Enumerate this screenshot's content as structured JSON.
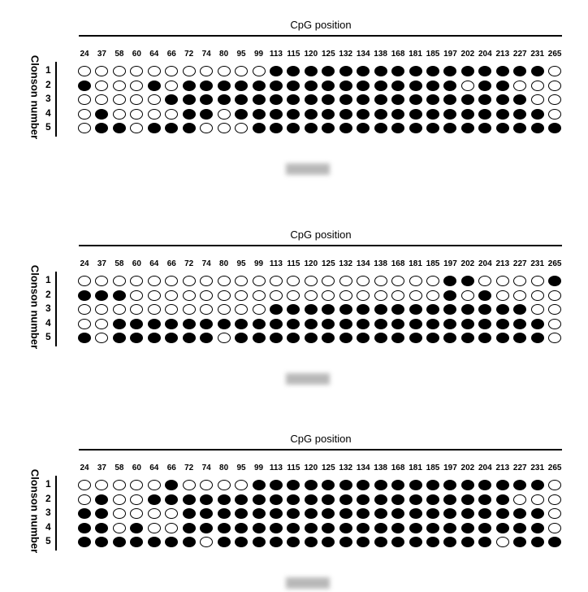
{
  "positions": [
    "24",
    "37",
    "58",
    "60",
    "64",
    "66",
    "72",
    "74",
    "80",
    "95",
    "99",
    "113",
    "115",
    "120",
    "125",
    "132",
    "134",
    "138",
    "168",
    "181",
    "185",
    "197",
    "202",
    "204",
    "213",
    "227",
    "231",
    "265"
  ],
  "x_title": "CpG position",
  "y_title": "Clonson number",
  "legend": {
    "filled": "methylated",
    "open": "unmethylated",
    "filled_color": "#000000",
    "open_color": "#ffffff"
  },
  "panels": [
    {
      "rows": [
        {
          "label": "1",
          "values": [
            0,
            0,
            0,
            0,
            0,
            0,
            0,
            0,
            0,
            0,
            0,
            1,
            1,
            1,
            1,
            1,
            1,
            1,
            1,
            1,
            1,
            1,
            1,
            1,
            1,
            1,
            1,
            0
          ]
        },
        {
          "label": "2",
          "values": [
            1,
            0,
            0,
            0,
            1,
            0,
            1,
            1,
            1,
            1,
            1,
            1,
            1,
            1,
            1,
            1,
            1,
            1,
            1,
            1,
            1,
            1,
            0,
            1,
            1,
            0,
            0,
            0
          ]
        },
        {
          "label": "3",
          "values": [
            0,
            0,
            0,
            0,
            0,
            1,
            1,
            1,
            1,
            1,
            1,
            1,
            1,
            1,
            1,
            1,
            1,
            1,
            1,
            1,
            1,
            1,
            1,
            1,
            1,
            1,
            0,
            0
          ]
        },
        {
          "label": "4",
          "values": [
            0,
            1,
            0,
            0,
            0,
            0,
            1,
            1,
            0,
            1,
            1,
            1,
            1,
            1,
            1,
            1,
            1,
            1,
            1,
            1,
            1,
            1,
            1,
            1,
            1,
            1,
            1,
            0
          ]
        },
        {
          "label": "5",
          "values": [
            0,
            1,
            1,
            0,
            1,
            1,
            1,
            0,
            0,
            0,
            1,
            1,
            1,
            1,
            1,
            1,
            1,
            1,
            1,
            1,
            1,
            1,
            1,
            1,
            1,
            1,
            1,
            1
          ]
        }
      ]
    },
    {
      "rows": [
        {
          "label": "1",
          "values": [
            0,
            0,
            0,
            0,
            0,
            0,
            0,
            0,
            0,
            0,
            0,
            0,
            0,
            0,
            0,
            0,
            0,
            0,
            0,
            0,
            0,
            1,
            1,
            0,
            0,
            0,
            0,
            1
          ]
        },
        {
          "label": "2",
          "values": [
            1,
            1,
            1,
            0,
            0,
            0,
            0,
            0,
            0,
            0,
            0,
            0,
            0,
            0,
            0,
            0,
            0,
            0,
            0,
            0,
            0,
            1,
            0,
            1,
            0,
            0,
            0,
            0
          ]
        },
        {
          "label": "3",
          "values": [
            0,
            0,
            0,
            0,
            0,
            0,
            0,
            0,
            0,
            0,
            0,
            1,
            1,
            1,
            1,
            1,
            1,
            1,
            1,
            1,
            1,
            1,
            1,
            1,
            1,
            1,
            0,
            0
          ]
        },
        {
          "label": "4",
          "values": [
            0,
            0,
            1,
            1,
            1,
            1,
            1,
            1,
            1,
            1,
            1,
            1,
            1,
            1,
            1,
            1,
            1,
            1,
            1,
            1,
            1,
            1,
            1,
            1,
            1,
            1,
            1,
            0
          ]
        },
        {
          "label": "5",
          "values": [
            1,
            0,
            1,
            1,
            1,
            1,
            1,
            1,
            0,
            1,
            1,
            1,
            1,
            1,
            1,
            1,
            1,
            1,
            1,
            1,
            1,
            1,
            1,
            1,
            1,
            1,
            1,
            0
          ]
        }
      ]
    },
    {
      "rows": [
        {
          "label": "1",
          "values": [
            0,
            0,
            0,
            0,
            0,
            1,
            0,
            0,
            0,
            0,
            1,
            1,
            1,
            1,
            1,
            1,
            1,
            1,
            1,
            1,
            1,
            1,
            1,
            1,
            1,
            1,
            1,
            0
          ]
        },
        {
          "label": "2",
          "values": [
            0,
            1,
            0,
            0,
            1,
            1,
            1,
            1,
            1,
            1,
            1,
            1,
            1,
            1,
            1,
            1,
            1,
            1,
            1,
            1,
            1,
            1,
            1,
            1,
            1,
            0,
            0,
            0
          ]
        },
        {
          "label": "3",
          "values": [
            1,
            1,
            0,
            0,
            0,
            0,
            1,
            1,
            1,
            1,
            1,
            1,
            1,
            1,
            1,
            1,
            1,
            1,
            1,
            1,
            1,
            1,
            1,
            1,
            1,
            1,
            1,
            0
          ]
        },
        {
          "label": "4",
          "values": [
            1,
            1,
            0,
            1,
            0,
            0,
            1,
            1,
            1,
            1,
            1,
            1,
            1,
            1,
            1,
            1,
            1,
            1,
            1,
            1,
            1,
            1,
            1,
            1,
            1,
            1,
            1,
            0
          ]
        },
        {
          "label": "5",
          "values": [
            1,
            1,
            1,
            1,
            1,
            1,
            1,
            0,
            1,
            1,
            1,
            1,
            1,
            1,
            1,
            1,
            1,
            1,
            1,
            1,
            1,
            1,
            1,
            1,
            0,
            1,
            1,
            1
          ]
        }
      ]
    }
  ]
}
